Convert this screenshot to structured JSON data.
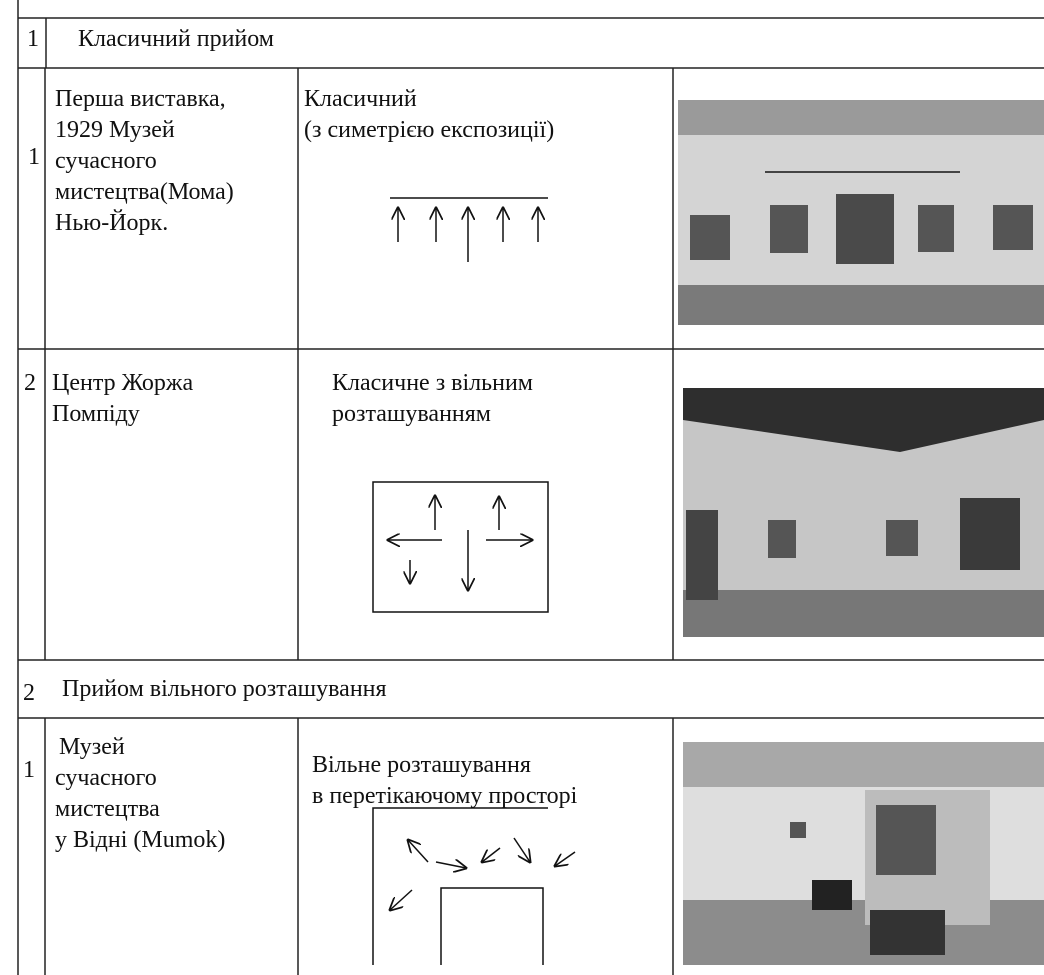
{
  "table": {
    "sections": [
      {
        "number": "1",
        "title": "Класичний  прийом",
        "rows": [
          {
            "number": "1",
            "name": [
              "Перша виставка,",
              "1929 Музей",
              "сучасного",
              "мистецтва(Мома)",
              "Нью-Йорк."
            ],
            "method": [
              "Класичний",
              "(з симетрією експозиції)"
            ]
          },
          {
            "number": "2",
            "name": [
              "Центр Жоржа",
              "Помпіду"
            ],
            "method": [
              "Класичне з вільним",
              "розташуванням"
            ]
          }
        ]
      },
      {
        "number": "2",
        "title": "Прийом вільного розташування",
        "rows": [
          {
            "number": "1",
            "name": [
              "Музей",
              "сучасного",
              "мистецтва",
              "у Відні (Mumok)"
            ],
            "method": [
              "Вільне розташування",
              "в перетікаючому просторі"
            ]
          }
        ]
      }
    ]
  }
}
